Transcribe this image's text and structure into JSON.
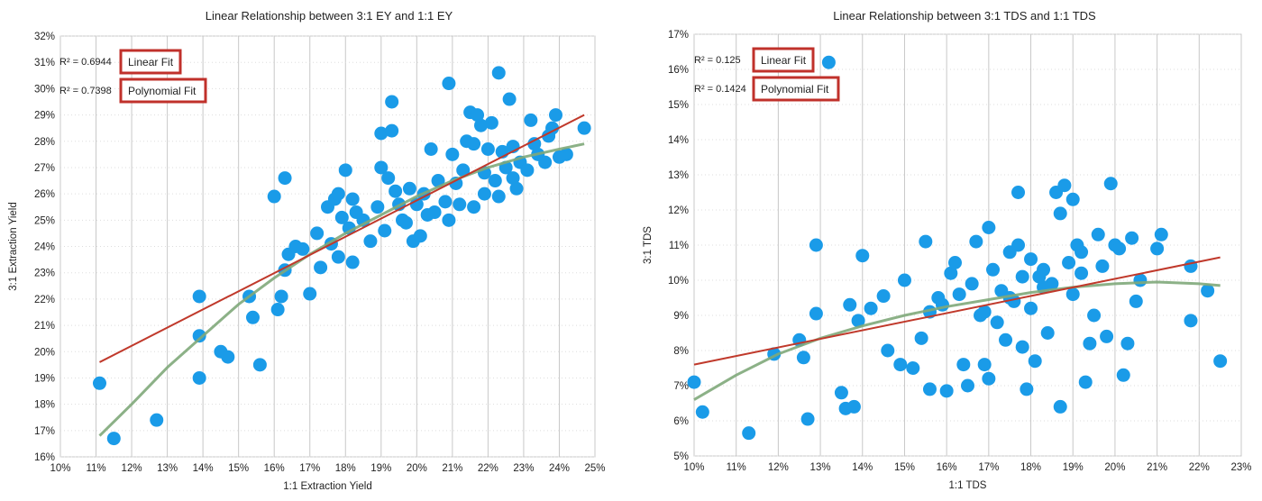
{
  "colors": {
    "background": "#ffffff",
    "grid": "#c8c8c8",
    "point": "#1a9be8",
    "linear": "#c0392b",
    "poly": "#7fa87a",
    "label_box": "#c0312b",
    "text": "#222222"
  },
  "chart_data": [
    {
      "type": "scatter",
      "title": "Linear Relationship between 3:1 EY and 1:1 EY",
      "xlabel": "1:1 Extraction Yield",
      "ylabel": "3:1 Extraction Yield",
      "xlim": [
        10,
        25
      ],
      "ylim": [
        16,
        32
      ],
      "x_ticks": [
        "10%",
        "11%",
        "12%",
        "13%",
        "14%",
        "15%",
        "16%",
        "17%",
        "18%",
        "19%",
        "20%",
        "21%",
        "22%",
        "23%",
        "24%",
        "25%"
      ],
      "y_ticks": [
        "16%",
        "17%",
        "18%",
        "19%",
        "20%",
        "21%",
        "22%",
        "23%",
        "24%",
        "25%",
        "26%",
        "27%",
        "28%",
        "29%",
        "30%",
        "31%",
        "32%"
      ],
      "grid": "vertical",
      "annotations": [
        {
          "r2": "R² = 0.6944",
          "label": "Linear Fit"
        },
        {
          "r2": "R² = 0.7398",
          "label": "Polynomial Fit"
        }
      ],
      "trendlines": {
        "linear": {
          "x": [
            11.1,
            24.7
          ],
          "y": [
            19.6,
            29.0
          ]
        },
        "polynomial": {
          "x": [
            11.1,
            12,
            13,
            14,
            15,
            16,
            17,
            18,
            19,
            20,
            21,
            22,
            23,
            24,
            24.7
          ],
          "y": [
            16.8,
            18.0,
            19.4,
            20.6,
            21.8,
            22.8,
            23.7,
            24.5,
            25.2,
            25.9,
            26.5,
            27.0,
            27.4,
            27.7,
            27.9
          ]
        }
      },
      "points": [
        [
          11.1,
          18.8
        ],
        [
          11.5,
          16.7
        ],
        [
          12.7,
          17.4
        ],
        [
          13.9,
          22.1
        ],
        [
          13.9,
          20.6
        ],
        [
          13.9,
          19.0
        ],
        [
          14.5,
          20.0
        ],
        [
          14.7,
          19.8
        ],
        [
          15.3,
          22.1
        ],
        [
          15.4,
          21.3
        ],
        [
          15.6,
          19.5
        ],
        [
          16.0,
          25.9
        ],
        [
          16.1,
          21.6
        ],
        [
          16.2,
          22.1
        ],
        [
          16.3,
          26.6
        ],
        [
          16.3,
          23.1
        ],
        [
          16.4,
          23.7
        ],
        [
          16.6,
          24.0
        ],
        [
          16.8,
          23.9
        ],
        [
          17.0,
          22.2
        ],
        [
          17.2,
          24.5
        ],
        [
          17.3,
          23.2
        ],
        [
          17.5,
          25.5
        ],
        [
          17.6,
          24.1
        ],
        [
          17.7,
          25.8
        ],
        [
          17.8,
          23.6
        ],
        [
          17.8,
          26.0
        ],
        [
          17.9,
          25.1
        ],
        [
          18.0,
          26.9
        ],
        [
          18.1,
          24.7
        ],
        [
          18.2,
          23.4
        ],
        [
          18.2,
          25.8
        ],
        [
          18.5,
          25.0
        ],
        [
          18.7,
          24.2
        ],
        [
          18.9,
          25.5
        ],
        [
          19.0,
          27.0
        ],
        [
          19.0,
          28.3
        ],
        [
          19.1,
          24.6
        ],
        [
          19.2,
          26.6
        ],
        [
          19.3,
          29.5
        ],
        [
          19.3,
          28.4
        ],
        [
          19.5,
          25.6
        ],
        [
          19.6,
          25.0
        ],
        [
          19.7,
          24.9
        ],
        [
          19.8,
          26.2
        ],
        [
          19.9,
          24.2
        ],
        [
          20.0,
          25.6
        ],
        [
          20.1,
          24.4
        ],
        [
          20.2,
          26.0
        ],
        [
          20.4,
          27.7
        ],
        [
          20.5,
          25.3
        ],
        [
          20.6,
          26.5
        ],
        [
          20.8,
          25.7
        ],
        [
          20.9,
          30.2
        ],
        [
          20.9,
          25.0
        ],
        [
          21.0,
          27.5
        ],
        [
          21.1,
          26.4
        ],
        [
          21.2,
          25.6
        ],
        [
          21.3,
          26.9
        ],
        [
          21.4,
          28.0
        ],
        [
          21.5,
          29.1
        ],
        [
          21.6,
          27.9
        ],
        [
          21.6,
          25.5
        ],
        [
          21.7,
          29.0
        ],
        [
          21.8,
          28.6
        ],
        [
          21.9,
          26.0
        ],
        [
          22.0,
          27.7
        ],
        [
          22.1,
          28.7
        ],
        [
          22.2,
          26.5
        ],
        [
          22.3,
          30.6
        ],
        [
          22.3,
          25.9
        ],
        [
          22.4,
          27.6
        ],
        [
          22.5,
          27.0
        ],
        [
          22.6,
          29.6
        ],
        [
          22.7,
          27.8
        ],
        [
          22.8,
          26.2
        ],
        [
          22.9,
          27.2
        ],
        [
          23.1,
          26.9
        ],
        [
          23.2,
          28.8
        ],
        [
          23.4,
          27.5
        ],
        [
          23.6,
          27.2
        ],
        [
          23.7,
          28.2
        ],
        [
          23.8,
          28.5
        ],
        [
          23.9,
          29.0
        ],
        [
          24.0,
          27.4
        ],
        [
          24.2,
          27.5
        ],
        [
          24.7,
          28.5
        ],
        [
          18.3,
          25.3
        ],
        [
          19.4,
          26.1
        ],
        [
          20.3,
          25.2
        ],
        [
          21.9,
          26.8
        ],
        [
          22.7,
          26.6
        ],
        [
          23.3,
          27.9
        ]
      ]
    },
    {
      "type": "scatter",
      "title": "Linear Relationship between 3:1 TDS and 1:1 TDS",
      "xlabel": "1:1 TDS",
      "ylabel": "3:1 TDS",
      "xlim": [
        10,
        23
      ],
      "ylim": [
        5,
        17
      ],
      "x_ticks": [
        "10%",
        "11%",
        "12%",
        "13%",
        "14%",
        "15%",
        "16%",
        "17%",
        "18%",
        "19%",
        "20%",
        "21%",
        "22%",
        "23%"
      ],
      "y_ticks": [
        "5%",
        "6%",
        "7%",
        "8%",
        "9%",
        "10%",
        "11%",
        "12%",
        "13%",
        "14%",
        "15%",
        "16%",
        "17%"
      ],
      "grid": "vertical",
      "annotations": [
        {
          "r2": "R² = 0.125",
          "label": "Linear Fit"
        },
        {
          "r2": "R² = 0.1424",
          "label": "Polynomial Fit"
        }
      ],
      "trendlines": {
        "linear": {
          "x": [
            10.0,
            22.5
          ],
          "y": [
            7.6,
            10.65
          ]
        },
        "polynomial": {
          "x": [
            10.0,
            11,
            12,
            13,
            14,
            15,
            16,
            17,
            18,
            19,
            20,
            21,
            22,
            22.5
          ],
          "y": [
            6.6,
            7.3,
            7.9,
            8.35,
            8.7,
            9.0,
            9.25,
            9.45,
            9.65,
            9.8,
            9.9,
            9.95,
            9.9,
            9.85
          ]
        }
      },
      "points": [
        [
          10.0,
          7.1
        ],
        [
          10.2,
          6.25
        ],
        [
          11.3,
          5.65
        ],
        [
          11.9,
          7.9
        ],
        [
          12.5,
          8.3
        ],
        [
          12.6,
          7.8
        ],
        [
          12.7,
          6.05
        ],
        [
          12.9,
          11.0
        ],
        [
          12.9,
          9.05
        ],
        [
          13.2,
          16.2
        ],
        [
          13.5,
          6.8
        ],
        [
          13.6,
          6.35
        ],
        [
          13.7,
          9.3
        ],
        [
          13.8,
          6.4
        ],
        [
          13.9,
          8.85
        ],
        [
          14.0,
          10.7
        ],
        [
          14.2,
          9.2
        ],
        [
          14.5,
          9.55
        ],
        [
          14.6,
          8.0
        ],
        [
          14.9,
          7.6
        ],
        [
          15.0,
          10.0
        ],
        [
          15.2,
          7.5
        ],
        [
          15.4,
          8.35
        ],
        [
          15.5,
          11.1
        ],
        [
          15.6,
          6.9
        ],
        [
          15.6,
          9.1
        ],
        [
          15.8,
          9.5
        ],
        [
          15.9,
          9.3
        ],
        [
          16.0,
          6.85
        ],
        [
          16.1,
          10.2
        ],
        [
          16.2,
          10.5
        ],
        [
          16.3,
          9.6
        ],
        [
          16.4,
          7.6
        ],
        [
          16.5,
          7.0
        ],
        [
          16.6,
          9.9
        ],
        [
          16.7,
          11.1
        ],
        [
          16.8,
          9.0
        ],
        [
          16.9,
          7.6
        ],
        [
          17.0,
          11.5
        ],
        [
          17.0,
          7.2
        ],
        [
          17.1,
          10.3
        ],
        [
          17.2,
          8.8
        ],
        [
          17.3,
          9.7
        ],
        [
          17.4,
          8.3
        ],
        [
          17.5,
          10.8
        ],
        [
          17.6,
          9.4
        ],
        [
          17.7,
          12.5
        ],
        [
          17.7,
          11.0
        ],
        [
          17.8,
          8.1
        ],
        [
          17.9,
          6.9
        ],
        [
          18.0,
          10.6
        ],
        [
          18.0,
          9.2
        ],
        [
          18.1,
          7.7
        ],
        [
          18.2,
          10.1
        ],
        [
          18.3,
          10.3
        ],
        [
          18.4,
          8.5
        ],
        [
          18.5,
          9.9
        ],
        [
          18.6,
          12.5
        ],
        [
          18.7,
          11.9
        ],
        [
          18.7,
          6.4
        ],
        [
          18.8,
          12.7
        ],
        [
          18.9,
          10.5
        ],
        [
          19.0,
          9.6
        ],
        [
          19.0,
          12.3
        ],
        [
          19.1,
          11.0
        ],
        [
          19.2,
          10.8
        ],
        [
          19.3,
          7.1
        ],
        [
          19.4,
          8.2
        ],
        [
          19.5,
          9.0
        ],
        [
          19.6,
          11.3
        ],
        [
          19.7,
          10.4
        ],
        [
          19.8,
          8.4
        ],
        [
          19.9,
          12.75
        ],
        [
          20.0,
          11.0
        ],
        [
          20.1,
          10.9
        ],
        [
          20.2,
          7.3
        ],
        [
          20.3,
          8.2
        ],
        [
          20.4,
          11.2
        ],
        [
          20.5,
          9.4
        ],
        [
          20.6,
          10.0
        ],
        [
          21.0,
          10.9
        ],
        [
          21.1,
          11.3
        ],
        [
          21.8,
          10.4
        ],
        [
          21.8,
          8.85
        ],
        [
          22.2,
          9.7
        ],
        [
          22.5,
          7.7
        ],
        [
          17.5,
          9.5
        ],
        [
          18.3,
          9.8
        ],
        [
          16.9,
          9.1
        ],
        [
          19.2,
          10.2
        ],
        [
          17.8,
          10.1
        ]
      ]
    }
  ]
}
